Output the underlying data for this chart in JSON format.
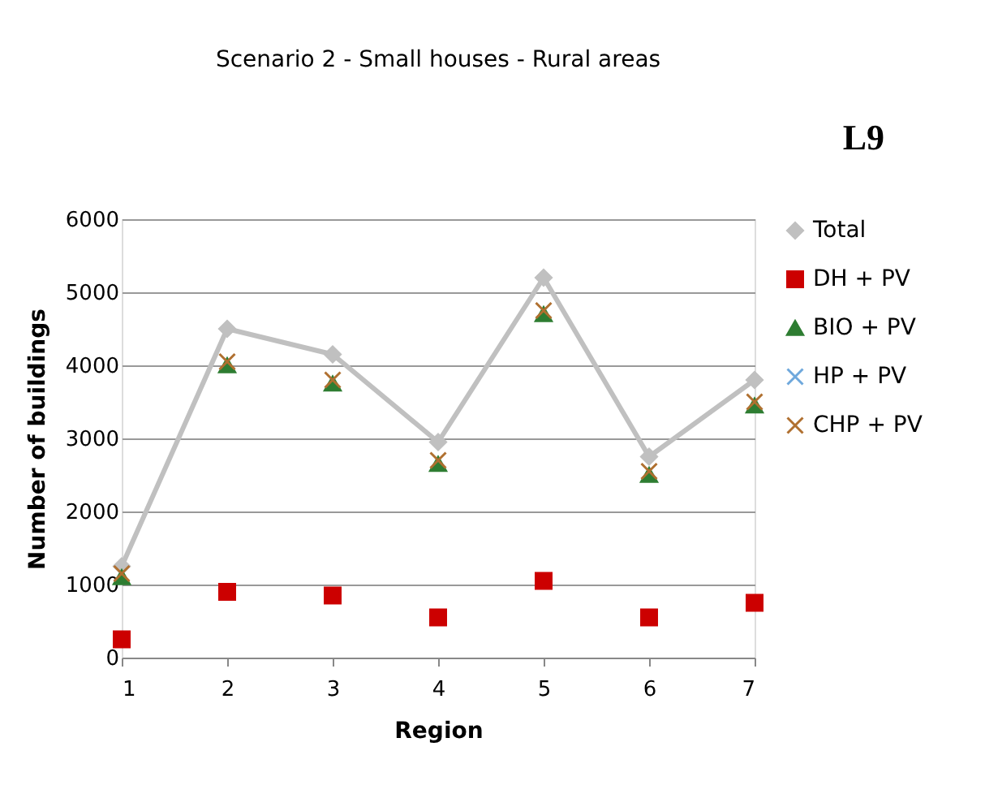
{
  "chart_data": {
    "type": "line",
    "title": "Scenario 2 - Small houses - Rural areas",
    "xlabel": "Region",
    "ylabel": "Number of buildings",
    "categories": [
      "1",
      "2",
      "3",
      "4",
      "5",
      "6",
      "7"
    ],
    "series": [
      {
        "name": "Total",
        "marker": "diamond",
        "color": "#c0c0c0",
        "values": [
          1250,
          4500,
          4150,
          2950,
          5200,
          2750,
          3800
        ]
      },
      {
        "name": "DH + PV",
        "type": "scatter",
        "marker": "square",
        "color": "#cc0000",
        "values": [
          250,
          900,
          850,
          550,
          1050,
          550,
          750
        ]
      },
      {
        "name": "BIO + PV",
        "type": "scatter",
        "marker": "triangle",
        "color": "#2e7d32",
        "values": [
          1100,
          4000,
          3750,
          2650,
          4700,
          2500,
          3450
        ]
      },
      {
        "name": "HP + PV",
        "type": "scatter",
        "marker": "cross",
        "color": "#6fa8dc",
        "values": [
          null,
          null,
          null,
          null,
          null,
          null,
          null
        ]
      },
      {
        "name": "CHP + PV",
        "type": "scatter",
        "marker": "cross",
        "color": "#b07030",
        "values": [
          1150,
          4050,
          3800,
          2700,
          4750,
          2550,
          3500
        ]
      }
    ],
    "ylim": [
      0,
      6000
    ],
    "yticks": [
      0,
      1000,
      2000,
      3000,
      4000,
      5000,
      6000
    ],
    "grid": "y",
    "legend": "right",
    "annotations": [
      "L9"
    ]
  }
}
